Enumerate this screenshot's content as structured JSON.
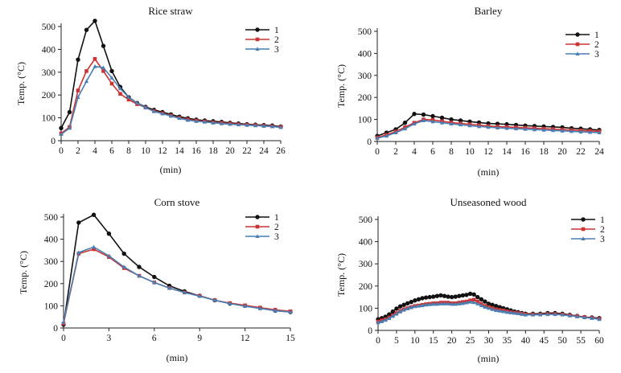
{
  "chart_data": [
    {
      "type": "line",
      "title": "Rice straw",
      "xlabel": "(min)",
      "ylabel": "Temp. (°C)",
      "xlim": [
        0,
        26
      ],
      "ylim": [
        0,
        500
      ],
      "xticks": [
        0,
        2,
        4,
        6,
        8,
        10,
        12,
        14,
        16,
        18,
        20,
        22,
        24,
        26
      ],
      "yticks": [
        0,
        100,
        200,
        300,
        400,
        500
      ],
      "series": [
        {
          "name": "1",
          "color": "#111111",
          "marker": "circle",
          "x": [
            0,
            1,
            2,
            3,
            4,
            5,
            6,
            7,
            8,
            9,
            10,
            11,
            12,
            13,
            14,
            15,
            16,
            17,
            18,
            19,
            20,
            21,
            22,
            23,
            24,
            25,
            26
          ],
          "y": [
            55,
            125,
            355,
            485,
            525,
            415,
            305,
            235,
            190,
            165,
            148,
            135,
            125,
            115,
            105,
            98,
            92,
            88,
            85,
            82,
            78,
            75,
            72,
            70,
            68,
            66,
            62
          ]
        },
        {
          "name": "2",
          "color": "#cc3333",
          "marker": "square",
          "x": [
            0,
            1,
            2,
            3,
            4,
            5,
            6,
            7,
            8,
            9,
            10,
            11,
            12,
            13,
            14,
            15,
            16,
            17,
            18,
            19,
            20,
            21,
            22,
            23,
            24,
            25,
            26
          ],
          "y": [
            32,
            60,
            220,
            305,
            358,
            305,
            250,
            205,
            180,
            160,
            145,
            130,
            120,
            110,
            100,
            93,
            88,
            84,
            80,
            78,
            75,
            72,
            70,
            68,
            65,
            63,
            60
          ]
        },
        {
          "name": "3",
          "color": "#4a7fb5",
          "marker": "triangle",
          "x": [
            0,
            1,
            2,
            3,
            4,
            5,
            6,
            7,
            8,
            9,
            10,
            11,
            12,
            13,
            14,
            15,
            16,
            17,
            18,
            19,
            20,
            21,
            22,
            23,
            24,
            25,
            26
          ],
          "y": [
            28,
            55,
            190,
            260,
            325,
            320,
            275,
            228,
            190,
            165,
            145,
            128,
            118,
            108,
            98,
            90,
            85,
            82,
            78,
            75,
            72,
            70,
            68,
            66,
            64,
            62,
            58
          ]
        }
      ]
    },
    {
      "type": "line",
      "title": "Barley",
      "xlabel": "(min)",
      "ylabel": "Temp. (°C)",
      "xlim": [
        0,
        24
      ],
      "ylim": [
        0,
        500
      ],
      "xticks": [
        0,
        2,
        4,
        6,
        8,
        10,
        12,
        14,
        16,
        18,
        20,
        22,
        24
      ],
      "yticks": [
        0,
        100,
        200,
        300,
        400,
        500
      ],
      "series": [
        {
          "name": "1",
          "color": "#111111",
          "marker": "circle",
          "x": [
            0,
            1,
            2,
            3,
            4,
            5,
            6,
            7,
            8,
            9,
            10,
            11,
            12,
            13,
            14,
            15,
            16,
            17,
            18,
            19,
            20,
            21,
            22,
            23,
            24
          ],
          "y": [
            25,
            40,
            55,
            85,
            125,
            122,
            115,
            108,
            100,
            95,
            90,
            86,
            82,
            80,
            78,
            75,
            72,
            70,
            68,
            66,
            64,
            60,
            58,
            55,
            52
          ]
        },
        {
          "name": "2",
          "color": "#cc3333",
          "marker": "square",
          "x": [
            0,
            1,
            2,
            3,
            4,
            5,
            6,
            7,
            8,
            9,
            10,
            11,
            12,
            13,
            14,
            15,
            16,
            17,
            18,
            19,
            20,
            21,
            22,
            23,
            24
          ],
          "y": [
            18,
            30,
            45,
            65,
            85,
            100,
            98,
            92,
            86,
            82,
            78,
            74,
            70,
            68,
            66,
            64,
            62,
            60,
            58,
            56,
            54,
            52,
            50,
            48,
            46
          ]
        },
        {
          "name": "3",
          "color": "#4a7fb5",
          "marker": "triangle",
          "x": [
            0,
            1,
            2,
            3,
            4,
            5,
            6,
            7,
            8,
            9,
            10,
            11,
            12,
            13,
            14,
            15,
            16,
            17,
            18,
            19,
            20,
            21,
            22,
            23,
            24
          ],
          "y": [
            15,
            25,
            40,
            58,
            80,
            95,
            90,
            85,
            80,
            76,
            72,
            68,
            65,
            62,
            60,
            58,
            56,
            54,
            52,
            50,
            48,
            46,
            44,
            42,
            40
          ]
        }
      ]
    },
    {
      "type": "line",
      "title": "Corn stove",
      "xlabel": "(min)",
      "ylabel": "Temp. (°C)",
      "xlim": [
        0,
        15
      ],
      "ylim": [
        0,
        500
      ],
      "xticks": [
        0,
        3,
        6,
        9,
        12,
        15
      ],
      "yticks": [
        0,
        100,
        200,
        300,
        400,
        500
      ],
      "series": [
        {
          "name": "1",
          "color": "#111111",
          "marker": "circle",
          "x": [
            0,
            1,
            2,
            3,
            4,
            5,
            6,
            7,
            8,
            9,
            10,
            11,
            12,
            13,
            14,
            15
          ],
          "y": [
            15,
            475,
            510,
            425,
            335,
            275,
            230,
            190,
            165,
            145,
            125,
            110,
            100,
            90,
            78,
            72
          ]
        },
        {
          "name": "2",
          "color": "#cc3333",
          "marker": "square",
          "x": [
            0,
            1,
            2,
            3,
            4,
            5,
            6,
            7,
            8,
            9,
            10,
            11,
            12,
            13,
            14,
            15
          ],
          "y": [
            20,
            335,
            355,
            320,
            270,
            235,
            205,
            180,
            160,
            145,
            125,
            112,
            102,
            92,
            82,
            75
          ]
        },
        {
          "name": "3",
          "color": "#4a7fb5",
          "marker": "triangle",
          "x": [
            0,
            1,
            2,
            3,
            4,
            5,
            6,
            7,
            8,
            9,
            10,
            11,
            12,
            13,
            14,
            15
          ],
          "y": [
            25,
            340,
            365,
            325,
            275,
            235,
            205,
            180,
            160,
            143,
            125,
            110,
            98,
            88,
            78,
            72
          ]
        }
      ]
    },
    {
      "type": "line",
      "title": "Unseasoned wood",
      "xlabel": "(min)",
      "ylabel": "Temp. (°C)",
      "xlim": [
        0,
        60
      ],
      "ylim": [
        0,
        500
      ],
      "xticks": [
        0,
        5,
        10,
        15,
        20,
        25,
        30,
        35,
        40,
        45,
        50,
        55,
        60
      ],
      "yticks": [
        0,
        100,
        200,
        300,
        400,
        500
      ],
      "series": [
        {
          "name": "1",
          "color": "#111111",
          "marker": "circle",
          "x": [
            0,
            1,
            2,
            3,
            4,
            5,
            6,
            7,
            8,
            9,
            10,
            11,
            12,
            13,
            14,
            15,
            16,
            17,
            18,
            19,
            20,
            21,
            22,
            23,
            24,
            25,
            26,
            27,
            28,
            29,
            30,
            31,
            32,
            33,
            34,
            35,
            36,
            37,
            38,
            39,
            40,
            42,
            44,
            46,
            48,
            50,
            52,
            54,
            56,
            58,
            60
          ],
          "y": [
            50,
            55,
            62,
            72,
            85,
            98,
            108,
            115,
            122,
            128,
            135,
            140,
            145,
            148,
            150,
            152,
            155,
            158,
            155,
            152,
            150,
            152,
            155,
            158,
            160,
            165,
            162,
            150,
            140,
            130,
            120,
            115,
            110,
            105,
            100,
            95,
            90,
            85,
            82,
            78,
            75,
            75,
            75,
            78,
            78,
            75,
            70,
            65,
            60,
            58,
            55
          ]
        },
        {
          "name": "2",
          "color": "#cc3333",
          "marker": "square",
          "x": [
            0,
            1,
            2,
            3,
            4,
            5,
            6,
            7,
            8,
            9,
            10,
            11,
            12,
            13,
            14,
            15,
            16,
            17,
            18,
            19,
            20,
            21,
            22,
            23,
            24,
            25,
            26,
            27,
            28,
            29,
            30,
            31,
            32,
            33,
            34,
            35,
            36,
            37,
            38,
            39,
            40,
            42,
            44,
            46,
            48,
            50,
            52,
            54,
            56,
            58,
            60
          ],
          "y": [
            40,
            45,
            50,
            58,
            68,
            78,
            88,
            95,
            100,
            105,
            110,
            112,
            115,
            118,
            120,
            122,
            122,
            125,
            125,
            125,
            122,
            122,
            125,
            128,
            130,
            135,
            138,
            130,
            120,
            110,
            105,
            100,
            95,
            92,
            90,
            86,
            82,
            80,
            78,
            75,
            72,
            72,
            72,
            74,
            74,
            72,
            68,
            64,
            60,
            56,
            52
          ]
        },
        {
          "name": "3",
          "color": "#4a7fb5",
          "marker": "triangle",
          "x": [
            0,
            1,
            2,
            3,
            4,
            5,
            6,
            7,
            8,
            9,
            10,
            11,
            12,
            13,
            14,
            15,
            16,
            17,
            18,
            19,
            20,
            21,
            22,
            23,
            24,
            25,
            26,
            27,
            28,
            29,
            30,
            31,
            32,
            33,
            34,
            35,
            36,
            37,
            38,
            39,
            40,
            42,
            44,
            46,
            48,
            50,
            52,
            54,
            56,
            58,
            60
          ],
          "y": [
            35,
            40,
            46,
            54,
            64,
            74,
            84,
            92,
            98,
            103,
            108,
            110,
            112,
            115,
            117,
            118,
            118,
            120,
            120,
            120,
            118,
            118,
            120,
            122,
            125,
            128,
            126,
            120,
            112,
            105,
            100,
            95,
            90,
            88,
            85,
            82,
            80,
            78,
            76,
            73,
            70,
            70,
            71,
            72,
            72,
            70,
            66,
            62,
            58,
            55,
            50
          ]
        }
      ]
    }
  ]
}
